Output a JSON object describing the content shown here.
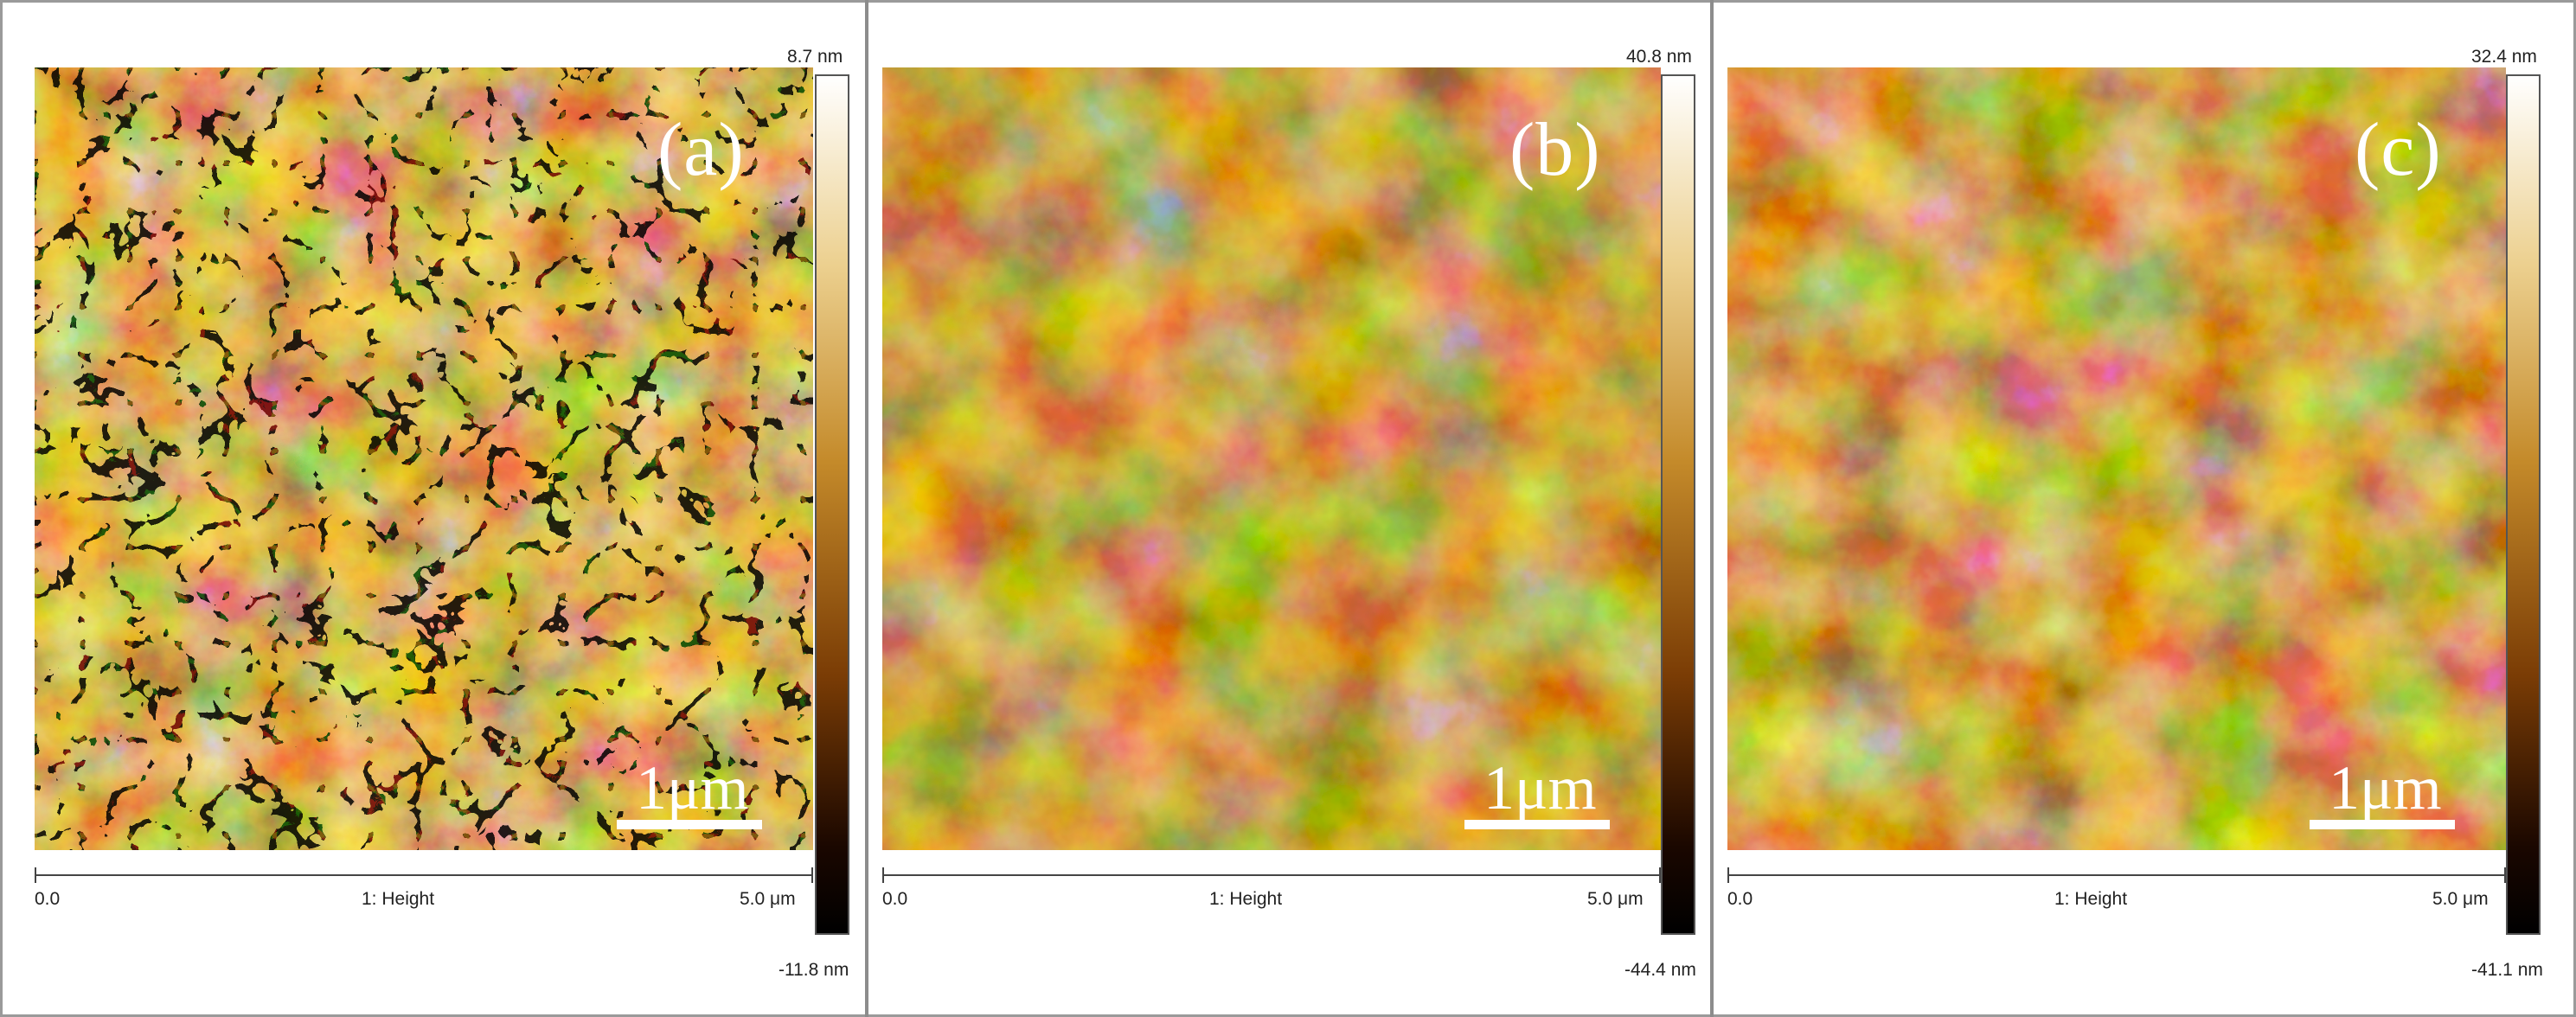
{
  "panels": [
    {
      "label": "(a)",
      "scalebar": "1μm",
      "axis": {
        "start": "0.0",
        "channel": "1: Height",
        "end": "5.0 μm"
      },
      "colorbar": {
        "max": "8.7 nm",
        "min": "-11.8 nm"
      }
    },
    {
      "label": "(b)",
      "scalebar": "1μm",
      "axis": {
        "start": "0.0",
        "channel": "1: Height",
        "end": "5.0 μm"
      },
      "colorbar": {
        "max": "40.8 nm",
        "min": "-44.4 nm"
      }
    },
    {
      "label": "(c)",
      "scalebar": "1μm",
      "axis": {
        "start": "0.0",
        "channel": "1: Height",
        "end": "5.0 μm"
      },
      "colorbar": {
        "max": "32.4 nm",
        "min": "-41.1 nm"
      }
    }
  ],
  "colors": {
    "afm_dark": "#2a1200",
    "afm_mid": "#b5740e",
    "afm_light": "#fff6e6"
  }
}
